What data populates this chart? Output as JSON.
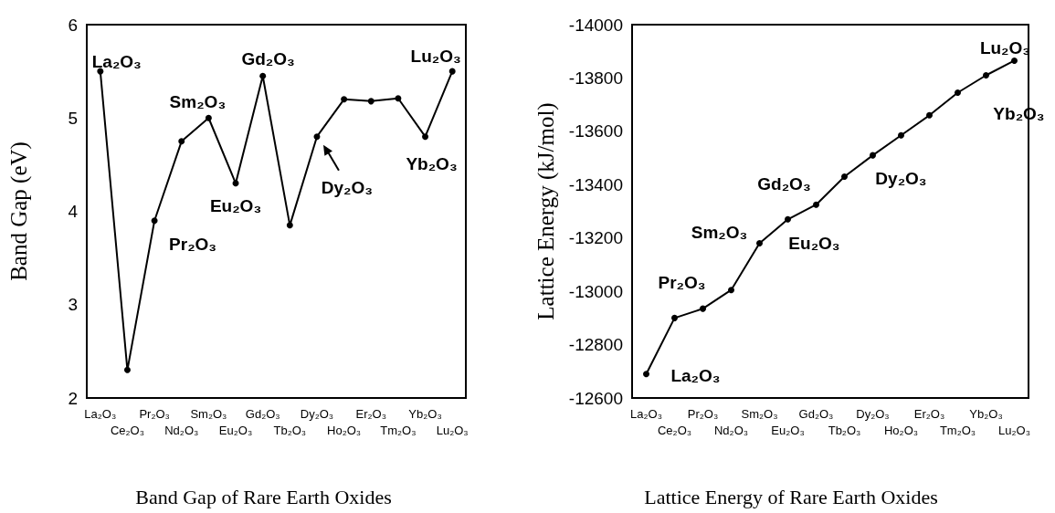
{
  "chart_data": [
    {
      "type": "line",
      "title": "Band Gap of Rare Earth Oxides",
      "ylabel": "Band Gap (eV)",
      "categories": [
        "La₂O₃",
        "Ce₂O₃",
        "Pr₂O₃",
        "Nd₂O₃",
        "Sm₂O₃",
        "Eu₂O₃",
        "Gd₂O₃",
        "Tb₂O₃",
        "Dy₂O₃",
        "Ho₂O₃",
        "Er₂O₃",
        "Tm₂O₃",
        "Yb₂O₃",
        "Lu₂O₃"
      ],
      "series": [
        {
          "color": "#000000",
          "values": [
            5.5,
            2.3,
            3.9,
            4.75,
            5.0,
            4.3,
            5.45,
            3.85,
            4.8,
            5.2,
            5.18,
            5.21,
            4.8,
            5.5
          ]
        }
      ],
      "ylim": [
        2,
        6
      ],
      "yticks": [
        2,
        3,
        4,
        5,
        6
      ],
      "grid": false,
      "marker": "circle",
      "line_style": "solid",
      "annotations": [
        {
          "text": "La₂O₃",
          "x": "La₂O₃",
          "y": 5.5
        },
        {
          "text": "Pr₂O₃",
          "x": "Pr₂O₃",
          "y": 3.9
        },
        {
          "text": "Sm₂O₃",
          "x": "Sm₂O₃",
          "y": 5.0
        },
        {
          "text": "Eu₂O₃",
          "x": "Eu₂O₃",
          "y": 4.3
        },
        {
          "text": "Gd₂O₃",
          "x": "Gd₂O₃",
          "y": 5.45
        },
        {
          "text": "Dy₂O₃",
          "x": "Dy₂O₃",
          "y": 4.8
        },
        {
          "text": "Yb₂O₃",
          "x": "Yb₂O₃",
          "y": 4.8
        },
        {
          "text": "Lu₂O₃",
          "x": "Lu₂O₃",
          "y": 5.5
        }
      ]
    },
    {
      "type": "line",
      "title": "Lattice Energy of Rare Earth Oxides",
      "ylabel": "Lattice Energy (kJ/mol)",
      "categories": [
        "La₂O₃",
        "Ce₂O₃",
        "Pr₂O₃",
        "Nd₂O₃",
        "Sm₂O₃",
        "Eu₂O₃",
        "Gd₂O₃",
        "Tb₂O₃",
        "Dy₂O₃",
        "Ho₂O₃",
        "Er₂O₃",
        "Tm₂O₃",
        "Yb₂O₃",
        "Lu₂O₃"
      ],
      "series": [
        {
          "color": "#000000",
          "values": [
            -12690,
            -12900,
            -12935,
            -13005,
            -13180,
            -13270,
            -13325,
            -13430,
            -13510,
            -13585,
            -13660,
            -13745,
            -13810,
            -13865
          ]
        }
      ],
      "ylim": [
        -12600,
        -14000
      ],
      "yticks": [
        -12600,
        -12800,
        -13000,
        -13200,
        -13400,
        -13600,
        -13800,
        -14000
      ],
      "grid": false,
      "marker": "circle",
      "line_style": "solid",
      "annotations": [
        {
          "text": "La₂O₃",
          "x": "La₂O₃",
          "y": -12690
        },
        {
          "text": "Pr₂O₃",
          "x": "Pr₂O₃",
          "y": -12935
        },
        {
          "text": "Sm₂O₃",
          "x": "Sm₂O₃",
          "y": -13180
        },
        {
          "text": "Eu₂O₃",
          "x": "Eu₂O₃",
          "y": -13270
        },
        {
          "text": "Gd₂O₃",
          "x": "Gd₂O₃",
          "y": -13325
        },
        {
          "text": "Dy₂O₃",
          "x": "Dy₂O₃",
          "y": -13510
        },
        {
          "text": "Yb₂O₃",
          "x": "Yb₂O₃",
          "y": -13810
        },
        {
          "text": "Lu₂O₃",
          "x": "Lu₂O₃",
          "y": -13865
        }
      ]
    }
  ]
}
